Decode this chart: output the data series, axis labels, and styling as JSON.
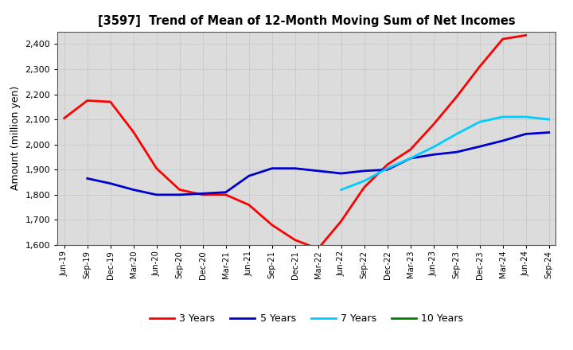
{
  "title": "[3597]  Trend of Mean of 12-Month Moving Sum of Net Incomes",
  "ylabel": "Amount (million yen)",
  "background_color": "#ffffff",
  "plot_bg_color": "#dcdcdc",
  "grid_color": "#aaaaaa",
  "ylim": [
    1600,
    2450
  ],
  "yticks": [
    1600,
    1700,
    1800,
    1900,
    2000,
    2100,
    2200,
    2300,
    2400
  ],
  "x_labels": [
    "Jun-19",
    "Sep-19",
    "Dec-19",
    "Mar-20",
    "Jun-20",
    "Sep-20",
    "Dec-20",
    "Mar-21",
    "Jun-21",
    "Sep-21",
    "Dec-21",
    "Mar-22",
    "Jun-22",
    "Sep-22",
    "Dec-22",
    "Mar-23",
    "Jun-23",
    "Sep-23",
    "Dec-23",
    "Mar-24",
    "Jun-24",
    "Sep-24"
  ],
  "series": {
    "3 Years": {
      "color": "#ff0000",
      "data_x": [
        "Jun-19",
        "Sep-19",
        "Dec-19",
        "Mar-20",
        "Jun-20",
        "Sep-20",
        "Dec-20",
        "Mar-21",
        "Jun-21",
        "Sep-21",
        "Dec-21",
        "Mar-22",
        "Jun-22",
        "Sep-22",
        "Dec-22",
        "Mar-23",
        "Jun-23",
        "Sep-23",
        "Dec-23",
        "Mar-24",
        "Jun-24"
      ],
      "data_y": [
        2105,
        2175,
        2170,
        2050,
        1905,
        1820,
        1800,
        1800,
        1760,
        1680,
        1620,
        1585,
        1695,
        1830,
        1920,
        1980,
        2080,
        2190,
        2310,
        2420,
        2435
      ]
    },
    "5 Years": {
      "color": "#0000cc",
      "data_x": [
        "Sep-19",
        "Dec-19",
        "Mar-20",
        "Jun-20",
        "Sep-20",
        "Dec-20",
        "Mar-21",
        "Jun-21",
        "Sep-21",
        "Dec-21",
        "Mar-22",
        "Jun-22",
        "Sep-22",
        "Dec-22",
        "Mar-23",
        "Jun-23",
        "Sep-23",
        "Dec-23",
        "Mar-24",
        "Jun-24",
        "Sep-24"
      ],
      "data_y": [
        1865,
        1845,
        1820,
        1800,
        1800,
        1805,
        1810,
        1875,
        1905,
        1905,
        1895,
        1885,
        1895,
        1900,
        1945,
        1960,
        1970,
        1992,
        2015,
        2042,
        2048
      ]
    },
    "7 Years": {
      "color": "#00ccff",
      "data_x": [
        "Jun-22",
        "Sep-22",
        "Dec-22",
        "Mar-23",
        "Jun-23",
        "Sep-23",
        "Dec-23",
        "Mar-24",
        "Jun-24",
        "Sep-24"
      ],
      "data_y": [
        1820,
        1855,
        1905,
        1945,
        1990,
        2042,
        2090,
        2110,
        2110,
        2100
      ]
    },
    "10 Years": {
      "color": "#008000",
      "data_x": [],
      "data_y": []
    }
  },
  "legend_items": [
    "3 Years",
    "5 Years",
    "7 Years",
    "10 Years"
  ]
}
